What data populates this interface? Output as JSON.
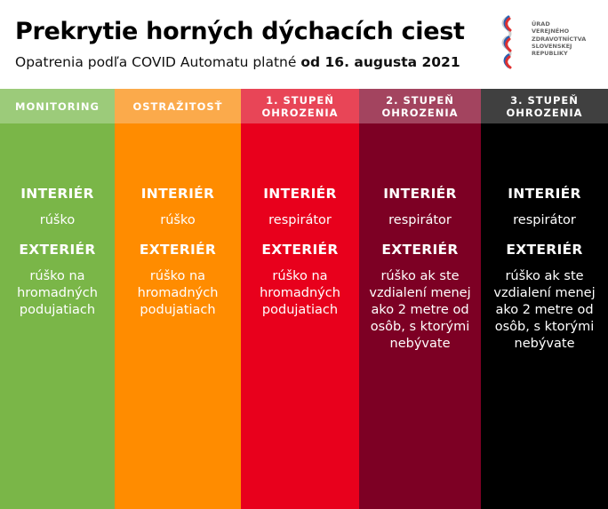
{
  "header": {
    "title": "Prekrytie horných dýchacích ciest",
    "subtitle_prefix": "Opatrenia podľa COVID Automatu platné ",
    "subtitle_bold": "od 16. augusta 2021"
  },
  "logo": {
    "lines": [
      "ÚRAD",
      "VEREJNÉHO",
      "ZDRAVOTNÍCTVA",
      "SLOVENSKEJ",
      "REPUBLIKY"
    ]
  },
  "labels": {
    "interior": "INTERIÉR",
    "exterior": "EXTERIÉR"
  },
  "columns": [
    {
      "name": "MONITORING",
      "head_color": "#9ccb7a",
      "body_color": "#7ab648",
      "interior": "rúško",
      "exterior": "rúško na hromadných podujatiach"
    },
    {
      "name": "OSTRAŽITOSŤ",
      "head_color": "#fbaa4b",
      "body_color": "#ff8c00",
      "interior": "rúško",
      "exterior": "rúško na hromadných podujatiach"
    },
    {
      "name": "1. STUPEŇ OHROZENIA",
      "head_color": "#e84557",
      "body_color": "#e8001c",
      "interior": "respirátor",
      "exterior": "rúško na hromadných podujatiach"
    },
    {
      "name": "2. STUPEŇ OHROZENIA",
      "head_color": "#a3445f",
      "body_color": "#7d0024",
      "interior": "respirátor",
      "exterior": "rúško ak ste vzdialení menej ako 2 metre od osôb, s ktorými nebývate"
    },
    {
      "name": "3. STUPEŇ OHROZENIA",
      "head_color": "#404040",
      "body_color": "#000000",
      "interior": "respirátor",
      "exterior": "rúško ak ste vzdialení menej ako 2 metre od osôb, s ktorými nebývate"
    }
  ]
}
